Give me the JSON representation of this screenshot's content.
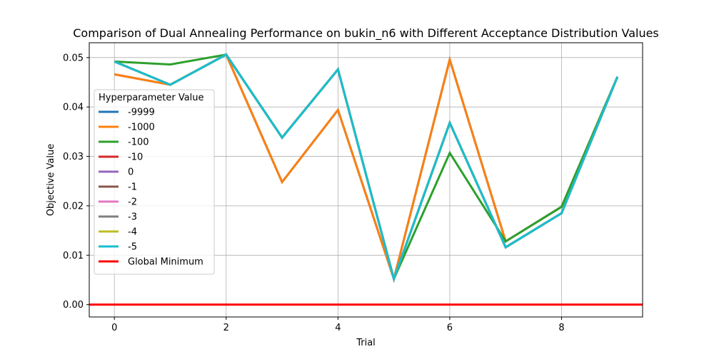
{
  "chart_data": {
    "type": "line",
    "title": "Comparison of Dual Annealing Performance on bukin_n6 with Different Acceptance Distribution Values",
    "xlabel": "Trial",
    "ylabel": "Objective Value",
    "x": [
      0,
      1,
      2,
      3,
      4,
      5,
      6,
      7,
      8,
      9
    ],
    "xlim": [
      -0.45,
      9.45
    ],
    "ylim": [
      -0.0025,
      0.053
    ],
    "xticks": [
      0,
      2,
      4,
      6,
      8
    ],
    "yticks": [
      0.0,
      0.01,
      0.02,
      0.03,
      0.04,
      0.05
    ],
    "xtick_labels": [
      "0",
      "2",
      "4",
      "6",
      "8"
    ],
    "ytick_labels": [
      "0.00",
      "0.01",
      "0.02",
      "0.03",
      "0.04",
      "0.05"
    ],
    "grid": true,
    "legend": {
      "title": "Hyperparameter Value",
      "placement": "center-left"
    },
    "series": [
      {
        "name": "-9999",
        "color": "#1f77b4",
        "values": [
          0.0466,
          0.0445,
          0.0506,
          0.0248,
          0.0394,
          0.0052,
          0.0496,
          0.0128,
          0.0198,
          0.0461
        ]
      },
      {
        "name": "-1000",
        "color": "#ff7f0e",
        "values": [
          0.0466,
          0.0445,
          0.0506,
          0.0248,
          0.0394,
          0.0052,
          0.0496,
          0.0128,
          0.0198,
          0.0461
        ]
      },
      {
        "name": "-100",
        "color": "#2ca02c",
        "values": [
          0.0492,
          0.0486,
          0.0506,
          0.0338,
          0.0476,
          0.0052,
          0.0307,
          0.0128,
          0.0198,
          0.0461
        ]
      },
      {
        "name": "-10",
        "color": "#d62728",
        "values": [
          0.0492,
          0.0445,
          0.0506,
          0.0338,
          0.0476,
          0.0052,
          0.0368,
          0.0116,
          0.0185,
          0.0461
        ]
      },
      {
        "name": "0",
        "color": "#9467bd",
        "values": [
          0.0492,
          0.0445,
          0.0506,
          0.0338,
          0.0476,
          0.0052,
          0.0368,
          0.0116,
          0.0185,
          0.0461
        ]
      },
      {
        "name": "-1",
        "color": "#8c564b",
        "values": [
          0.0492,
          0.0445,
          0.0506,
          0.0338,
          0.0476,
          0.0052,
          0.0368,
          0.0116,
          0.0185,
          0.0461
        ]
      },
      {
        "name": "-2",
        "color": "#e377c2",
        "values": [
          0.0492,
          0.0445,
          0.0506,
          0.0338,
          0.0476,
          0.0052,
          0.0368,
          0.0116,
          0.0185,
          0.0461
        ]
      },
      {
        "name": "-3",
        "color": "#7f7f7f",
        "values": [
          0.0492,
          0.0445,
          0.0506,
          0.0338,
          0.0476,
          0.0052,
          0.0368,
          0.0116,
          0.0185,
          0.0461
        ]
      },
      {
        "name": "-4",
        "color": "#bcbd22",
        "values": [
          0.0492,
          0.0445,
          0.0506,
          0.0338,
          0.0476,
          0.0052,
          0.0368,
          0.0116,
          0.0185,
          0.0461
        ]
      },
      {
        "name": "-5",
        "color": "#17becf",
        "values": [
          0.0492,
          0.0445,
          0.0506,
          0.0338,
          0.0476,
          0.0052,
          0.0368,
          0.0116,
          0.0185,
          0.0461
        ]
      }
    ],
    "hline": {
      "name": "Global Minimum",
      "y": 0.0,
      "color": "#ff0000"
    }
  }
}
